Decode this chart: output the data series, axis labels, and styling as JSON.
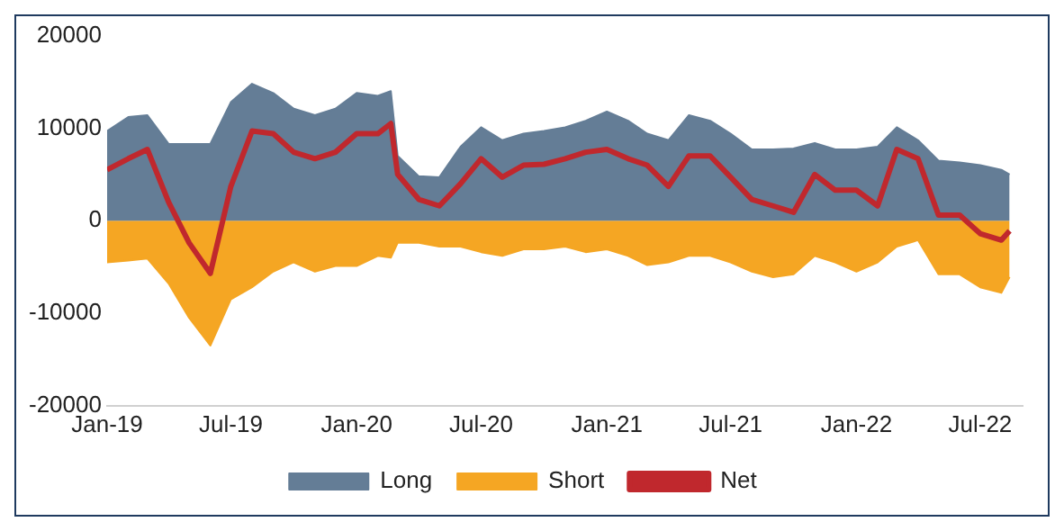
{
  "chart_data": {
    "type": "area",
    "x": [
      "2019-01",
      "2019-02",
      "2019-03",
      "2019-04",
      "2019-05",
      "2019-06",
      "2019-07",
      "2019-08",
      "2019-09",
      "2019-10",
      "2019-11",
      "2019-12",
      "2020-01",
      "2020-02",
      "2020-02-20",
      "2020-03",
      "2020-04",
      "2020-05",
      "2020-06",
      "2020-07",
      "2020-08",
      "2020-09",
      "2020-10",
      "2020-11",
      "2020-12",
      "2021-01",
      "2021-02",
      "2021-03",
      "2021-04",
      "2021-05",
      "2021-06",
      "2021-07",
      "2021-08",
      "2021-09",
      "2021-10",
      "2021-11",
      "2021-12",
      "2022-01",
      "2022-02",
      "2022-03",
      "2022-04",
      "2022-05",
      "2022-06",
      "2022-07",
      "2022-08",
      "2022-08-13"
    ],
    "series": [
      {
        "name": "Long",
        "color": "#647d96",
        "values": [
          9700,
          11200,
          11400,
          8300,
          8300,
          8300,
          12800,
          14800,
          13800,
          12100,
          11400,
          12100,
          13800,
          13500,
          14000,
          7000,
          4800,
          4700,
          8000,
          10100,
          8700,
          9400,
          9700,
          10100,
          10800,
          11800,
          10800,
          9400,
          8700,
          11400,
          10800,
          9400,
          7700,
          7700,
          7800,
          8400,
          7700,
          7700,
          8000,
          10100,
          8700,
          6500,
          6300,
          6000,
          5500,
          5000
        ]
      },
      {
        "name": "Short",
        "color": "#f5a623",
        "values": [
          -4500,
          -4300,
          -4100,
          -6800,
          -10500,
          -13500,
          -8500,
          -7200,
          -5500,
          -4500,
          -5500,
          -4900,
          -4900,
          -3800,
          -4000,
          -2400,
          -2400,
          -2800,
          -2800,
          -3400,
          -3800,
          -3100,
          -3100,
          -2800,
          -3400,
          -3100,
          -3800,
          -4800,
          -4500,
          -3800,
          -3800,
          -4500,
          -5500,
          -6100,
          -5800,
          -3800,
          -4500,
          -5500,
          -4500,
          -2800,
          -2100,
          -5800,
          -5800,
          -7200,
          -7800,
          -6100
        ]
      },
      {
        "name": "Net",
        "type": "line",
        "color": "#c0282d",
        "values": [
          5500,
          6700,
          7700,
          2000,
          -2400,
          -5700,
          3700,
          9700,
          9400,
          7400,
          6700,
          7400,
          9400,
          9400,
          10500,
          5000,
          2300,
          1600,
          4000,
          6700,
          4700,
          6000,
          6100,
          6700,
          7400,
          7700,
          6700,
          6000,
          3700,
          7000,
          7000,
          4700,
          2300,
          1600,
          900,
          5000,
          3300,
          3300,
          1600,
          7700,
          6700,
          600,
          600,
          -1400,
          -2100,
          -1100
        ]
      }
    ],
    "xlim": [
      "2019-01",
      "2022-09"
    ],
    "xticks": [
      {
        "value": "2019-01",
        "label": "Jan-19"
      },
      {
        "value": "2019-07",
        "label": "Jul-19"
      },
      {
        "value": "2020-01",
        "label": "Jan-20"
      },
      {
        "value": "2020-07",
        "label": "Jul-20"
      },
      {
        "value": "2021-01",
        "label": "Jan-21"
      },
      {
        "value": "2021-07",
        "label": "Jul-21"
      },
      {
        "value": "2022-01",
        "label": "Jan-22"
      },
      {
        "value": "2022-07",
        "label": "Jul-22"
      }
    ],
    "ylim": [
      -20000,
      20000
    ],
    "yticks": [
      -20000,
      -10000,
      0,
      10000,
      20000
    ],
    "grid": false,
    "legend": "bottom"
  }
}
